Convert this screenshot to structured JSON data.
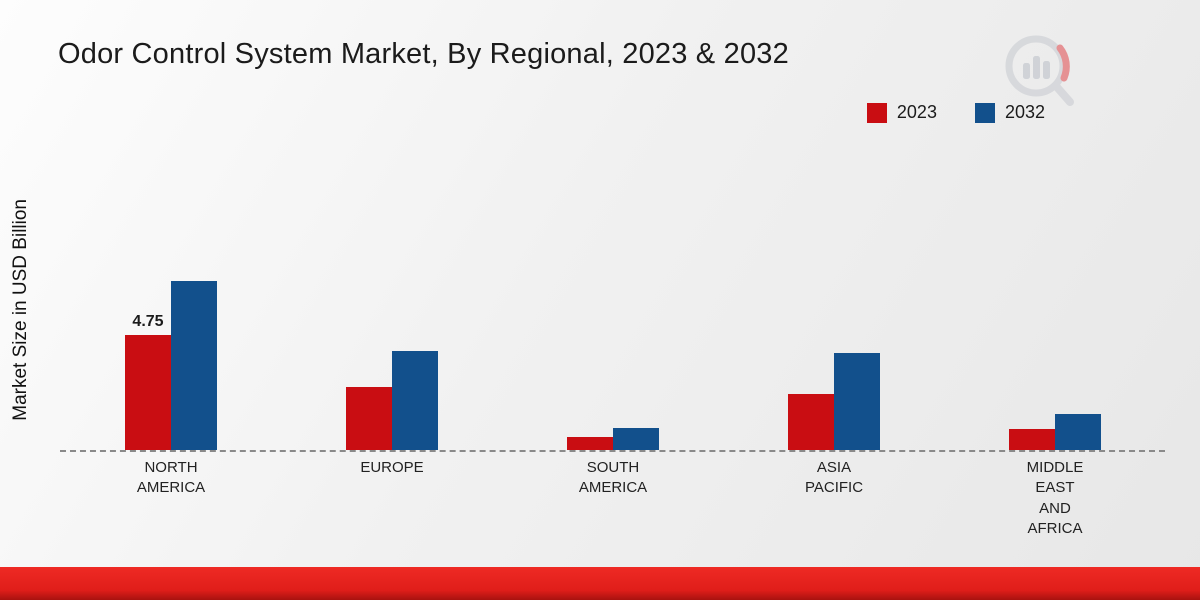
{
  "title": "Odor Control System Market, By Regional, 2023 & 2032",
  "ylabel": "Market Size in USD Billion",
  "legend": [
    {
      "label": "2023",
      "color": "#c90d12"
    },
    {
      "label": "2032",
      "color": "#12508c"
    }
  ],
  "footer_color": "#e01e1a",
  "chart_data": {
    "type": "bar",
    "title": "Odor Control System Market, By Regional, 2023 & 2032",
    "xlabel": "",
    "ylabel": "Market Size in USD Billion",
    "ylim": [
      0,
      8
    ],
    "grid": false,
    "legend_position": "top-right",
    "baseline_style": "dashed",
    "categories": [
      "NORTH AMERICA",
      "EUROPE",
      "SOUTH AMERICA",
      "ASIA PACIFIC",
      "MIDDLE EAST AND AFRICA"
    ],
    "category_lines": [
      [
        "NORTH",
        "AMERICA"
      ],
      [
        "EUROPE"
      ],
      [
        "SOUTH",
        "AMERICA"
      ],
      [
        "ASIA",
        "PACIFIC"
      ],
      [
        "MIDDLE",
        "EAST",
        "AND",
        "AFRICA"
      ]
    ],
    "series": [
      {
        "name": "2023",
        "color": "#c90d12",
        "values": [
          4.75,
          2.6,
          0.55,
          2.3,
          0.85
        ]
      },
      {
        "name": "2032",
        "color": "#12508c",
        "values": [
          7.0,
          4.1,
          0.9,
          4.0,
          1.5
        ]
      }
    ],
    "data_labels": [
      {
        "series_index": 0,
        "category_index": 0,
        "text": "4.75"
      }
    ]
  }
}
